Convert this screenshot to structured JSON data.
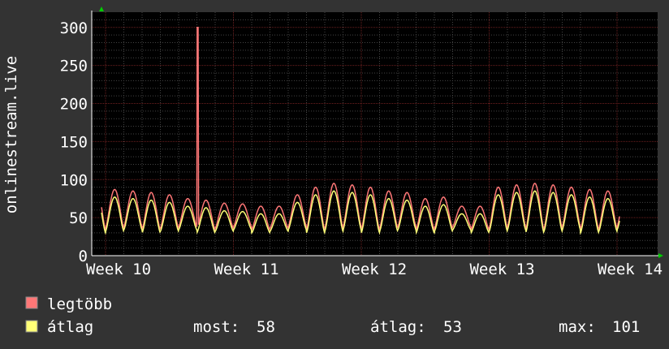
{
  "chart_data": {
    "type": "line",
    "ylabel": "onlinestream.live",
    "x_ticks": [
      "Week 10",
      "Week 11",
      "Week 12",
      "Week 13",
      "Week 14"
    ],
    "y_ticks": [
      0,
      50,
      100,
      150,
      200,
      250,
      300
    ],
    "ylim": [
      0,
      320
    ],
    "grid": true,
    "series": [
      {
        "name": "legtöbb",
        "color": "#ff7777"
      },
      {
        "name": "átlag",
        "color": "#ffff77"
      }
    ],
    "legend_position": "bottom-left",
    "summary": {
      "most_label": "most:",
      "most_value": "58",
      "avg_label": "átlag:",
      "avg_value": "53",
      "max_label": "max:",
      "max_value": "101"
    },
    "spike": {
      "week": 10.72,
      "value": 300
    }
  }
}
